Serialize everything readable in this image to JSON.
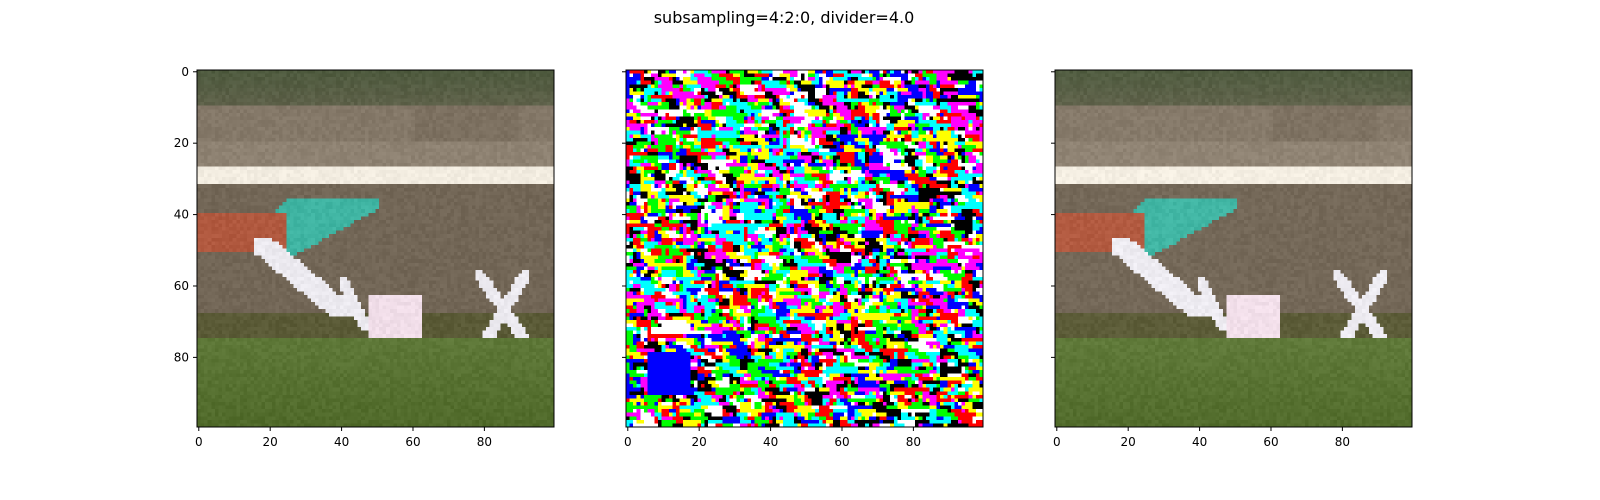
{
  "figure": {
    "title": "subsampling=4:2:0, divider=4.0"
  },
  "chart_data": [
    {
      "type": "heatmap",
      "panel": "left",
      "content": "photo crop: green-grey background band, white horizontal stripe, teal object, white lower object, green ground",
      "xlim": [
        0,
        99
      ],
      "ylim": [
        99,
        0
      ],
      "xticks": [
        "0",
        "20",
        "40",
        "60",
        "80"
      ],
      "yticks": [
        "0",
        "20",
        "40",
        "60",
        "80"
      ],
      "palette": {
        "sky_dark": "#4e5a3e",
        "mid_brown": "#7a6e5e",
        "stripe": "#f2ece0",
        "teal": "#3fb4a2",
        "red_brown": "#b0583e",
        "white_object": "#eceaf0",
        "pink_box": "#f0dde8",
        "ground_dark": "#5a5a36",
        "grass": "#5e7438"
      }
    },
    {
      "type": "heatmap",
      "panel": "middle",
      "content": "noise of saturated pixels",
      "xlim": [
        0,
        99
      ],
      "ylim": [
        99,
        0
      ],
      "xticks": [
        "0",
        "20",
        "40",
        "60",
        "80"
      ],
      "yticks": [],
      "palette": [
        "#ff0000",
        "#00ff00",
        "#0000ff",
        "#ffff00",
        "#ff00ff",
        "#00ffff",
        "#ffffff",
        "#000000"
      ]
    },
    {
      "type": "heatmap",
      "panel": "right",
      "content": "reconstructed photo crop, visually identical to left panel",
      "xlim": [
        0,
        99
      ],
      "ylim": [
        99,
        0
      ],
      "xticks": [
        "0",
        "20",
        "40",
        "60",
        "80"
      ],
      "yticks": []
    }
  ]
}
